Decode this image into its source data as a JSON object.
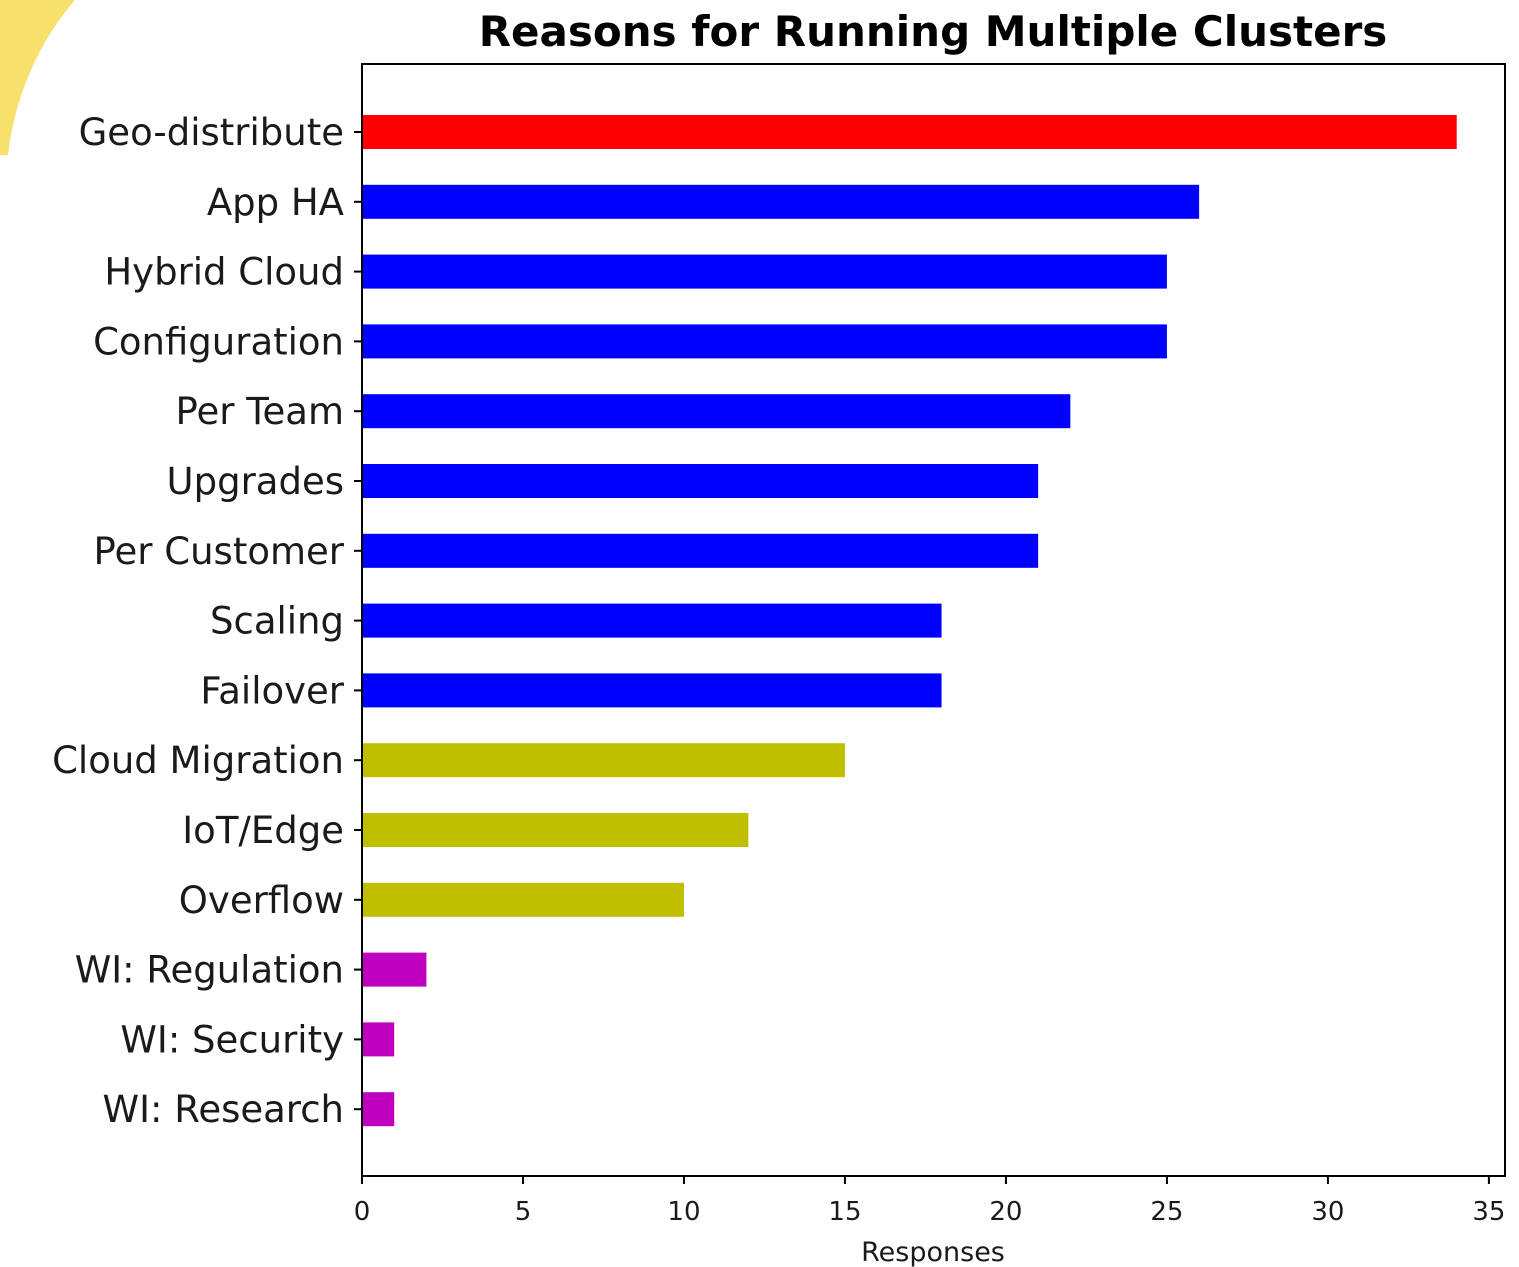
{
  "chart_data": {
    "type": "bar",
    "orientation": "horizontal",
    "title": "Reasons for Running Multiple Clusters",
    "xlabel": "Responses",
    "ylabel": "",
    "xlim": [
      0,
      35.5
    ],
    "xticks": [
      0,
      5,
      10,
      15,
      20,
      25,
      30,
      35
    ],
    "grid": false,
    "categories": [
      "Geo-distribute",
      "App HA",
      "Hybrid Cloud",
      "Configuration",
      "Per Team",
      "Upgrades",
      "Per Customer",
      "Scaling",
      "Failover",
      "Cloud Migration",
      "IoT/Edge",
      "Overflow",
      "WI: Regulation",
      "WI: Security",
      "WI: Research"
    ],
    "values": [
      34,
      26,
      25,
      25,
      22,
      21,
      21,
      18,
      18,
      15,
      12,
      10,
      2,
      1,
      1
    ],
    "colors": [
      "#ff0000",
      "#0000ff",
      "#0000ff",
      "#0000ff",
      "#0000ff",
      "#0000ff",
      "#0000ff",
      "#0000ff",
      "#0000ff",
      "#bfbf00",
      "#bfbf00",
      "#bfbf00",
      "#bf00bf",
      "#bf00bf",
      "#bf00bf"
    ]
  }
}
